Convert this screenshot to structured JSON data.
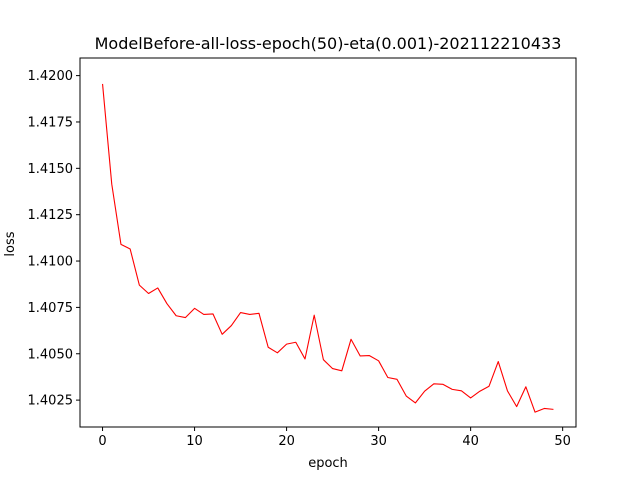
{
  "chart_data": {
    "type": "line",
    "title": "ModelBefore-all-loss-epoch(50)-eta(0.001)-202112210433",
    "xlabel": "epoch",
    "ylabel": "loss",
    "xlim": [
      -2.45,
      51.45
    ],
    "ylim": [
      1.40105,
      1.42095
    ],
    "xticks": [
      0,
      10,
      20,
      30,
      40,
      50
    ],
    "xtick_labels": [
      "0",
      "10",
      "20",
      "30",
      "40",
      "50"
    ],
    "yticks": [
      1.4025,
      1.405,
      1.4075,
      1.41,
      1.4125,
      1.415,
      1.4175,
      1.42
    ],
    "ytick_labels": [
      "1.4025",
      "1.4050",
      "1.4075",
      "1.4100",
      "1.4125",
      "1.4150",
      "1.4175",
      "1.4200"
    ],
    "grid": false,
    "series": [
      {
        "color": "#ff0000",
        "x": [
          0,
          1,
          2,
          3,
          4,
          5,
          6,
          7,
          8,
          9,
          10,
          11,
          12,
          13,
          14,
          15,
          16,
          17,
          18,
          19,
          20,
          21,
          22,
          23,
          24,
          25,
          26,
          27,
          28,
          29,
          30,
          31,
          32,
          33,
          34,
          35,
          36,
          37,
          38,
          39,
          40,
          41,
          42,
          43,
          44,
          45,
          46,
          47,
          48,
          49
        ],
        "values": [
          1.41955,
          1.41415,
          1.4109,
          1.41065,
          1.4087,
          1.40825,
          1.40855,
          1.4077,
          1.40705,
          1.40695,
          1.40745,
          1.40712,
          1.40715,
          1.40605,
          1.40652,
          1.40722,
          1.40712,
          1.40718,
          1.40535,
          1.40505,
          1.40552,
          1.40562,
          1.40472,
          1.40708,
          1.40468,
          1.4042,
          1.40408,
          1.40578,
          1.40488,
          1.4049,
          1.40462,
          1.40372,
          1.40362,
          1.40272,
          1.40235,
          1.40298,
          1.40338,
          1.40335,
          1.40308,
          1.403,
          1.40262,
          1.40298,
          1.40325,
          1.40458,
          1.403,
          1.40215,
          1.40322,
          1.40185,
          1.40205,
          1.402
        ]
      }
    ]
  }
}
